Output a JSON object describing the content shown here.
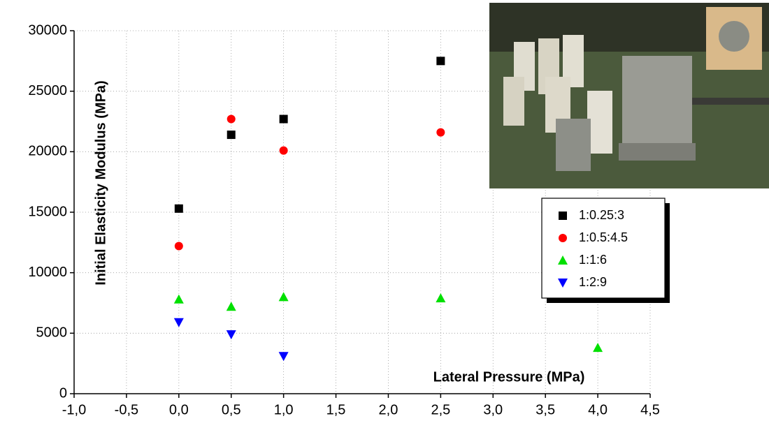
{
  "chart_data": {
    "type": "scatter",
    "xlabel": "Lateral Pressure (MPa)",
    "ylabel": "Initial Elasticity Modulus (MPa)",
    "xlim": [
      -1.0,
      4.5
    ],
    "xticks": [
      {
        "value": -1.0,
        "label": "-1,0"
      },
      {
        "value": -0.5,
        "label": "-0,5"
      },
      {
        "value": 0.0,
        "label": "0,0"
      },
      {
        "value": 0.5,
        "label": "0,5"
      },
      {
        "value": 1.0,
        "label": "1,0"
      },
      {
        "value": 1.5,
        "label": "1,5"
      },
      {
        "value": 2.0,
        "label": "2,0"
      },
      {
        "value": 2.5,
        "label": "2,5"
      },
      {
        "value": 3.0,
        "label": "3,0"
      },
      {
        "value": 3.5,
        "label": "3,5"
      },
      {
        "value": 4.0,
        "label": "4,0"
      },
      {
        "value": 4.5,
        "label": "4,5"
      }
    ],
    "ylim": [
      0,
      30000
    ],
    "yticks": [
      0,
      5000,
      10000,
      15000,
      20000,
      25000,
      30000
    ],
    "grid": true,
    "series": [
      {
        "name": "1:0.25:3",
        "color": "#000000",
        "marker": "square",
        "x": [
          0.0,
          0.5,
          1.0,
          2.5
        ],
        "values": [
          15300,
          21400,
          22700,
          27500
        ]
      },
      {
        "name": "1:0.5:4.5",
        "color": "#ff0000",
        "marker": "circle",
        "x": [
          0.0,
          0.5,
          1.0,
          2.5
        ],
        "values": [
          12200,
          22700,
          20100,
          21600
        ]
      },
      {
        "name": "1:1:6",
        "color": "#00e000",
        "marker": "triangle-up",
        "x": [
          0.0,
          0.5,
          1.0,
          2.5,
          4.0
        ],
        "values": [
          7800,
          7200,
          8000,
          7900,
          3800
        ]
      },
      {
        "name": "1:2:9",
        "color": "#0000ff",
        "marker": "triangle-down",
        "x": [
          0.0,
          0.5,
          1.0
        ],
        "values": [
          5900,
          4900,
          3100
        ]
      }
    ]
  }
}
